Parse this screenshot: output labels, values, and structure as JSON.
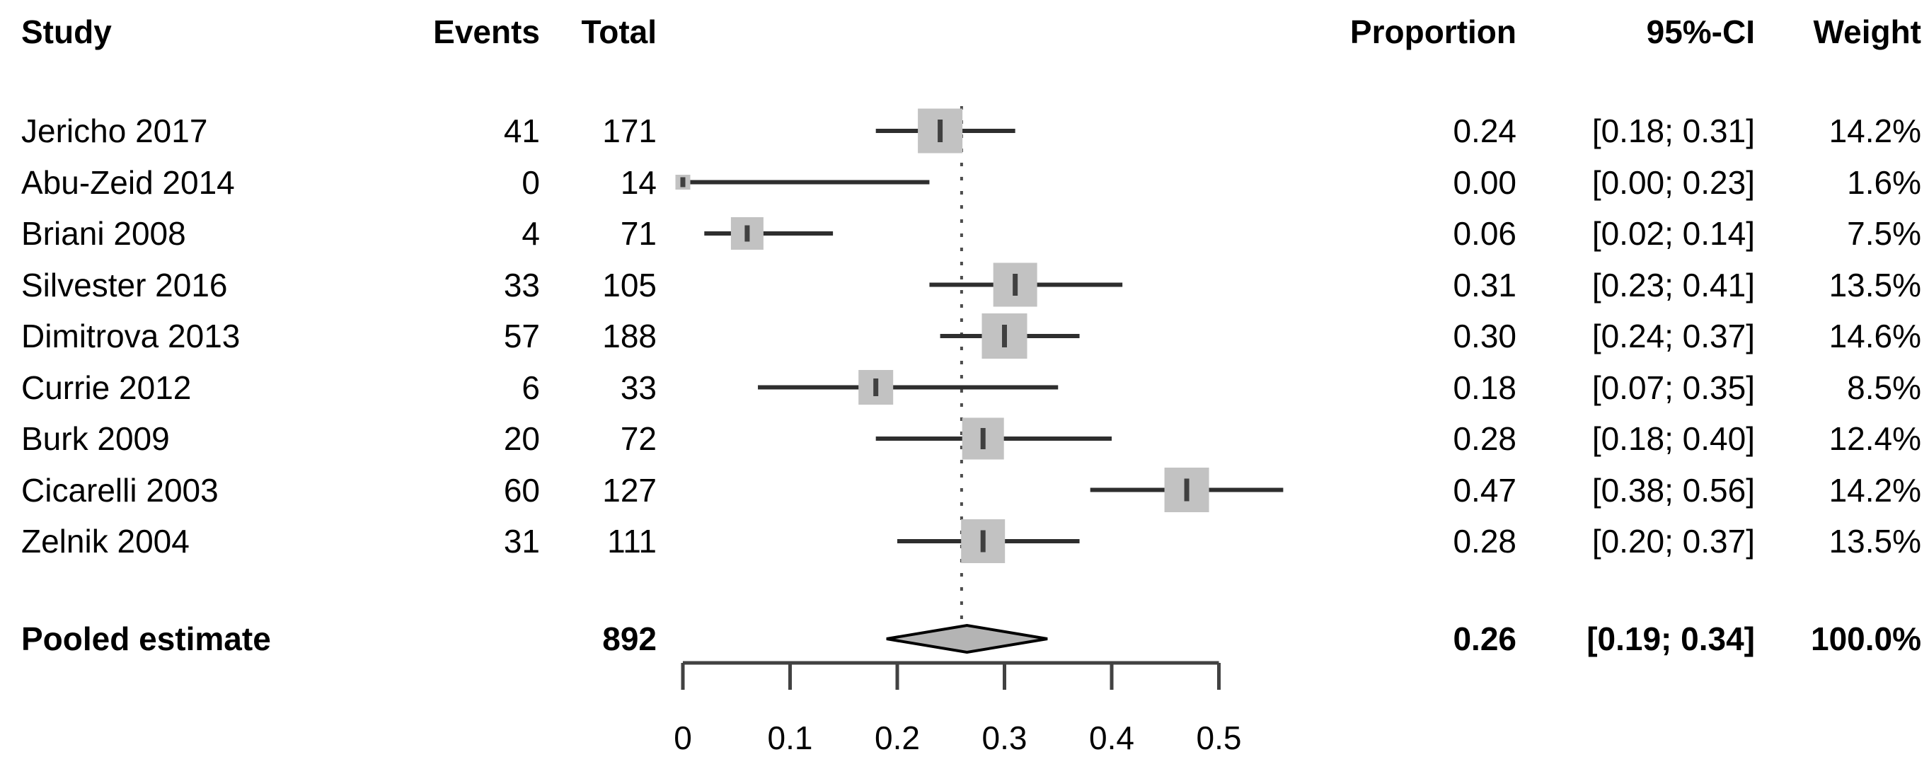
{
  "chart_data": {
    "type": "forest",
    "title": "",
    "columns": {
      "study": "Study",
      "events": "Events",
      "total": "Total",
      "proportion": "Proportion",
      "ci": "95%-CI",
      "weight": "Weight"
    },
    "studies": [
      {
        "study": "Jericho 2017",
        "events": "41",
        "total": "171",
        "proportion": "0.24",
        "ci": "[0.18; 0.31]",
        "weight": "14.2%",
        "est": 0.24,
        "lo": 0.18,
        "hi": 0.31,
        "w": 14.2
      },
      {
        "study": "Abu-Zeid 2014",
        "events": "0",
        "total": "14",
        "proportion": "0.00",
        "ci": "[0.00; 0.23]",
        "weight": "1.6%",
        "est": 0.0,
        "lo": 0.0,
        "hi": 0.23,
        "w": 1.6
      },
      {
        "study": "Briani 2008",
        "events": "4",
        "total": "71",
        "proportion": "0.06",
        "ci": "[0.02; 0.14]",
        "weight": "7.5%",
        "est": 0.06,
        "lo": 0.02,
        "hi": 0.14,
        "w": 7.5
      },
      {
        "study": "Silvester 2016",
        "events": "33",
        "total": "105",
        "proportion": "0.31",
        "ci": "[0.23; 0.41]",
        "weight": "13.5%",
        "est": 0.31,
        "lo": 0.23,
        "hi": 0.41,
        "w": 13.5
      },
      {
        "study": "Dimitrova 2013",
        "events": "57",
        "total": "188",
        "proportion": "0.30",
        "ci": "[0.24; 0.37]",
        "weight": "14.6%",
        "est": 0.3,
        "lo": 0.24,
        "hi": 0.37,
        "w": 14.6
      },
      {
        "study": "Currie 2012",
        "events": "6",
        "total": "33",
        "proportion": "0.18",
        "ci": "[0.07; 0.35]",
        "weight": "8.5%",
        "est": 0.18,
        "lo": 0.07,
        "hi": 0.35,
        "w": 8.5
      },
      {
        "study": "Burk 2009",
        "events": "20",
        "total": "72",
        "proportion": "0.28",
        "ci": "[0.18; 0.40]",
        "weight": "12.4%",
        "est": 0.28,
        "lo": 0.18,
        "hi": 0.4,
        "w": 12.4
      },
      {
        "study": "Cicarelli 2003",
        "events": "60",
        "total": "127",
        "proportion": "0.47",
        "ci": "[0.38; 0.56]",
        "weight": "14.2%",
        "est": 0.47,
        "lo": 0.38,
        "hi": 0.56,
        "w": 14.2
      },
      {
        "study": "Zelnik 2004",
        "events": "31",
        "total": "111",
        "proportion": "0.28",
        "ci": "[0.20; 0.37]",
        "weight": "13.5%",
        "est": 0.28,
        "lo": 0.2,
        "hi": 0.37,
        "w": 13.5
      }
    ],
    "pooled": {
      "label": "Pooled estimate",
      "total": "892",
      "proportion": "0.26",
      "ci": "[0.19; 0.34]",
      "weight": "100.0%",
      "est": 0.26,
      "lo": 0.19,
      "hi": 0.34
    },
    "axis": {
      "min": 0,
      "max": 0.5,
      "ticks": [
        {
          "label": "0",
          "value": 0
        },
        {
          "label": "0.1",
          "value": 0.1
        },
        {
          "label": "0.2",
          "value": 0.2
        },
        {
          "label": "0.3",
          "value": 0.3
        },
        {
          "label": "0.4",
          "value": 0.4
        },
        {
          "label": "0.5",
          "value": 0.5
        }
      ],
      "reference_value": 0.26
    },
    "colors": {
      "square_fill": "#c2c2c2",
      "estimate_tick": "#404040",
      "ci_line": "#2e2e2e",
      "reference_line": "#4d4d4d",
      "axis_line": "#424242",
      "diamond_fill": "#b4b4b4",
      "diamond_stroke": "#000000",
      "text": "#000000"
    }
  }
}
